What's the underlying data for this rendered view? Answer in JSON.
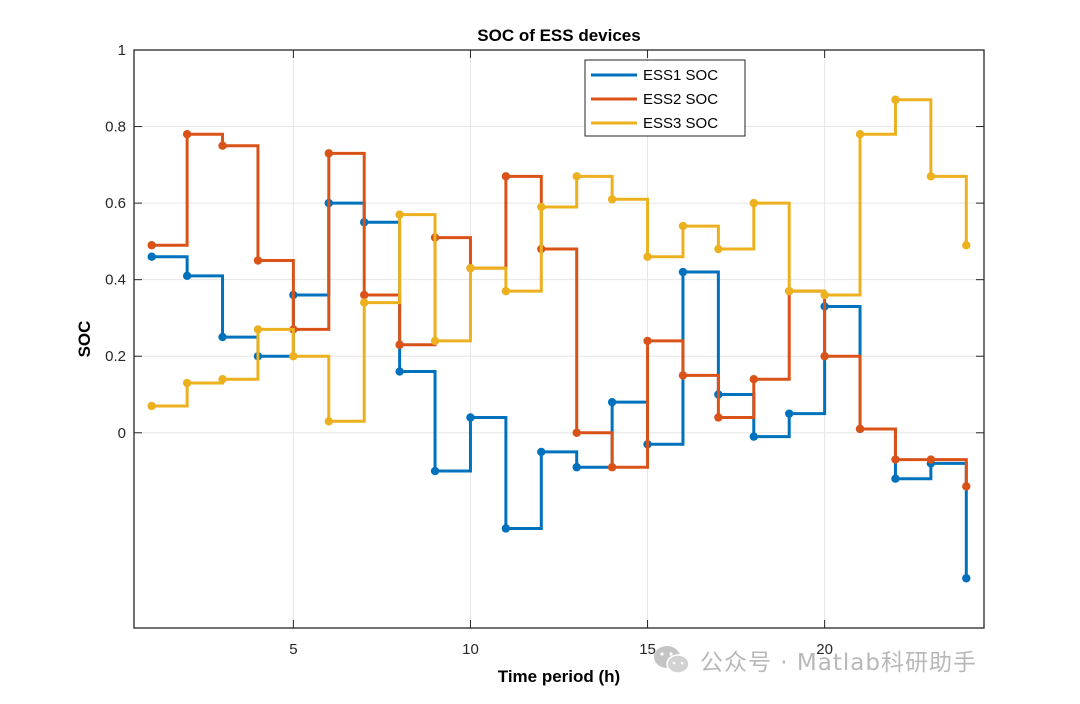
{
  "chart_data": {
    "type": "line",
    "title": "SOC of ESS devices",
    "xlabel": "Time period (h)",
    "ylabel": "SOC",
    "xlim": [
      0.5,
      24.5
    ],
    "ylim": [
      -0.51,
      1.0
    ],
    "xticks": [
      5,
      10,
      15,
      20
    ],
    "yticks": [
      0,
      0.2,
      0.4,
      0.6,
      0.8,
      1
    ],
    "ytick_labels": [
      "0",
      "0.2",
      "0.4",
      "0.6",
      "0.8",
      "1"
    ],
    "grid": true,
    "legend_position": "top-center",
    "x": [
      1,
      2,
      3,
      4,
      5,
      6,
      7,
      8,
      9,
      10,
      11,
      12,
      13,
      14,
      15,
      16,
      17,
      18,
      19,
      20,
      21,
      22,
      23,
      24
    ],
    "series": [
      {
        "name": "ESS1 SOC",
        "color": "#0072BD",
        "values": [
          0.46,
          0.41,
          0.25,
          0.2,
          0.36,
          0.6,
          0.55,
          0.16,
          -0.1,
          0.04,
          -0.25,
          -0.05,
          -0.09,
          0.08,
          -0.03,
          0.42,
          0.1,
          -0.01,
          0.05,
          0.33,
          0.01,
          -0.12,
          -0.08,
          -0.38
        ]
      },
      {
        "name": "ESS2 SOC",
        "color": "#D95319",
        "values": [
          0.49,
          0.78,
          0.75,
          0.45,
          0.27,
          0.73,
          0.36,
          0.23,
          0.51,
          0.43,
          0.67,
          0.48,
          0.0,
          -0.09,
          0.24,
          0.15,
          0.04,
          0.14,
          0.37,
          0.2,
          0.01,
          -0.07,
          -0.07,
          -0.14
        ]
      },
      {
        "name": "ESS3 SOC",
        "color": "#EDB120",
        "values": [
          0.07,
          0.13,
          0.14,
          0.27,
          0.2,
          0.03,
          0.34,
          0.57,
          0.24,
          0.43,
          0.37,
          0.59,
          0.67,
          0.61,
          0.46,
          0.54,
          0.48,
          0.6,
          0.37,
          0.36,
          0.78,
          0.87,
          0.67,
          0.49
        ]
      }
    ]
  },
  "watermark": {
    "text": "公众号 · Matlab科研助手",
    "icon": "wechat-icon"
  }
}
